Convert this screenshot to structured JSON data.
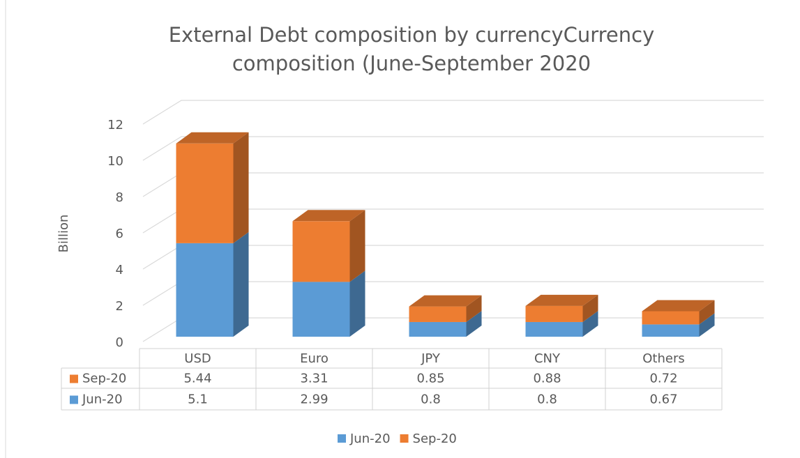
{
  "chart_data": {
    "type": "bar",
    "stacked": true,
    "three_d": true,
    "title": "External Debt composition by currencyCurrency composition (June-September 2020",
    "y_label": "Billion",
    "categories": [
      "USD",
      "Euro",
      "JPY",
      "CNY",
      "Others"
    ],
    "series": [
      {
        "name": "Jun-20",
        "color": "#5b9bd5",
        "values": [
          5.1,
          2.99,
          0.8,
          0.8,
          0.67
        ]
      },
      {
        "name": "Sep-20",
        "color": "#ed7d31",
        "values": [
          5.44,
          3.31,
          0.85,
          0.88,
          0.72
        ]
      }
    ],
    "ylim": [
      0,
      12
    ],
    "yticks": [
      0,
      2,
      4,
      6,
      8,
      10,
      12
    ],
    "grid": true,
    "legend": "bottom",
    "data_table": true
  }
}
